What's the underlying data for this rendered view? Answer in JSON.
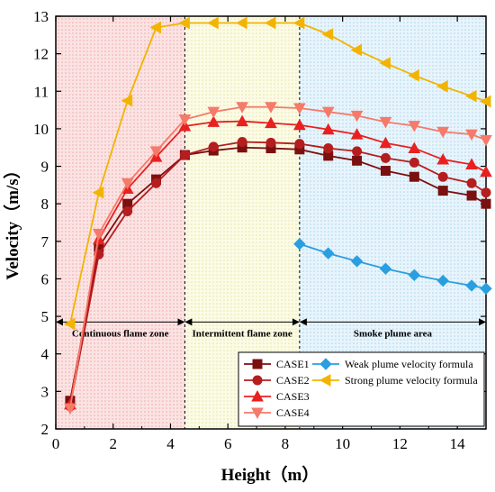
{
  "chart_data": {
    "type": "line",
    "xlabel": "Height（m）",
    "ylabel": "Velocity（m/s）",
    "xlim": [
      0,
      15
    ],
    "ylim": [
      2,
      13
    ],
    "xticks": [
      "0",
      "2",
      "4",
      "6",
      "8",
      "10",
      "12",
      "14"
    ],
    "yticks": [
      "2",
      "3",
      "4",
      "5",
      "6",
      "7",
      "8",
      "9",
      "10",
      "11",
      "12",
      "13"
    ],
    "zones": [
      {
        "label": "Continuous flame zone",
        "x_start": 0,
        "x_end": 4.5,
        "color": "#f7c6c6"
      },
      {
        "label": "Intermittent flame zone",
        "x_start": 4.5,
        "x_end": 8.5,
        "color": "#f6f6cf"
      },
      {
        "label": "Smoke plume area",
        "x_start": 8.5,
        "x_end": 15,
        "color": "#cfe9f7"
      }
    ],
    "zone_arrow_y": 4.85,
    "series": [
      {
        "name": "CASE1",
        "color": "#7a1010",
        "marker": "square",
        "x": [
          0.5,
          1.5,
          2.5,
          3.5,
          4.5,
          5.5,
          6.5,
          7.5,
          8.5,
          9.5,
          10.5,
          11.5,
          12.5,
          13.5,
          14.5,
          15
        ],
        "y": [
          2.75,
          6.85,
          8.0,
          8.65,
          9.3,
          9.42,
          9.5,
          9.48,
          9.45,
          9.28,
          9.15,
          8.88,
          8.72,
          8.35,
          8.22,
          8.0
        ]
      },
      {
        "name": "CASE2",
        "color": "#b51e1e",
        "marker": "circle",
        "x": [
          0.5,
          1.5,
          2.5,
          3.5,
          4.5,
          5.5,
          6.5,
          7.5,
          8.5,
          9.5,
          10.5,
          11.5,
          12.5,
          13.5,
          14.5,
          15
        ],
        "y": [
          2.6,
          6.65,
          7.8,
          8.55,
          9.3,
          9.52,
          9.65,
          9.63,
          9.6,
          9.48,
          9.4,
          9.22,
          9.1,
          8.72,
          8.55,
          8.3
        ]
      },
      {
        "name": "CASE3",
        "color": "#e82020",
        "marker": "triangle-up",
        "x": [
          0.5,
          1.5,
          2.5,
          3.5,
          4.5,
          5.5,
          6.5,
          7.5,
          8.5,
          9.5,
          10.5,
          11.5,
          12.5,
          13.5,
          14.5,
          15
        ],
        "y": [
          2.65,
          7.05,
          8.4,
          9.25,
          10.07,
          10.18,
          10.2,
          10.15,
          10.1,
          9.98,
          9.85,
          9.62,
          9.48,
          9.18,
          9.05,
          8.85
        ]
      },
      {
        "name": "CASE4",
        "color": "#f57a6a",
        "marker": "triangle-down",
        "x": [
          0.5,
          1.5,
          2.5,
          3.5,
          4.5,
          5.5,
          6.5,
          7.5,
          8.5,
          9.5,
          10.5,
          11.5,
          12.5,
          13.5,
          14.5,
          15
        ],
        "y": [
          2.55,
          7.2,
          8.55,
          9.4,
          10.25,
          10.45,
          10.58,
          10.58,
          10.55,
          10.45,
          10.35,
          10.18,
          10.08,
          9.92,
          9.85,
          9.7
        ]
      },
      {
        "name": "Weak plume velocity formula",
        "color": "#2a9fe0",
        "marker": "diamond",
        "x": [
          8.5,
          9.5,
          10.5,
          11.5,
          12.5,
          13.5,
          14.5,
          15
        ],
        "y": [
          6.93,
          6.68,
          6.47,
          6.27,
          6.1,
          5.95,
          5.82,
          5.74
        ]
      },
      {
        "name": "Strong plume velocity formula",
        "color": "#f2b400",
        "marker": "triangle-left",
        "x": [
          0.5,
          1.5,
          2.5,
          3.5,
          4.5,
          5.5,
          6.5,
          7.5,
          8.5,
          9.5,
          10.5,
          11.5,
          12.5,
          13.5,
          14.5,
          15
        ],
        "y": [
          4.8,
          8.3,
          10.75,
          12.7,
          12.82,
          12.82,
          12.82,
          12.82,
          12.82,
          12.52,
          12.1,
          11.75,
          11.42,
          11.13,
          10.87,
          10.73
        ]
      }
    ],
    "legend_location": "lower-right"
  }
}
